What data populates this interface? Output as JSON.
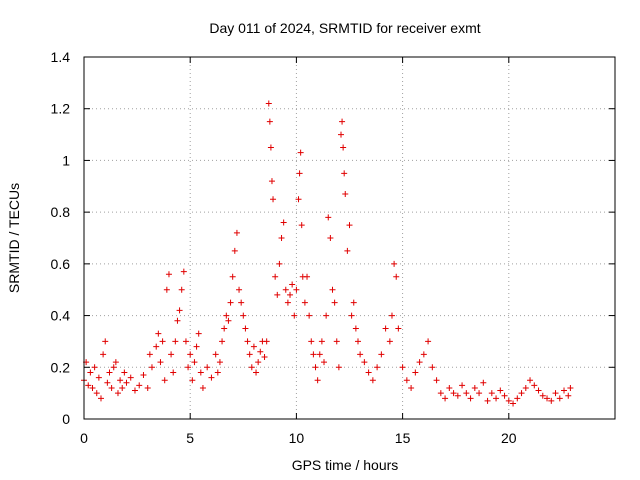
{
  "chart_data": {
    "type": "scatter",
    "title": "Day 011 of 2024, SRMTID for receiver exmt",
    "xlabel": "GPS time / hours",
    "ylabel": "SRMTID / TECUs",
    "xlim": [
      0,
      25
    ],
    "ylim": [
      0,
      1.4
    ],
    "x_ticks": [
      0,
      5,
      10,
      15,
      20
    ],
    "x_tick_labels": [
      "0",
      "5",
      "10",
      "15",
      "20"
    ],
    "y_ticks": [
      0,
      0.2,
      0.4,
      0.6,
      0.8,
      1.0,
      1.2,
      1.4
    ],
    "y_tick_labels": [
      "0",
      "0.2",
      "0.4",
      "0.6",
      "0.8",
      "1",
      "1.2",
      "1.4"
    ],
    "grid": true,
    "marker": "+",
    "marker_color": "#e00000",
    "series": [
      {
        "name": "SRMTID",
        "points": [
          [
            0.0,
            0.15
          ],
          [
            0.1,
            0.22
          ],
          [
            0.2,
            0.13
          ],
          [
            0.3,
            0.18
          ],
          [
            0.4,
            0.12
          ],
          [
            0.5,
            0.2
          ],
          [
            0.6,
            0.1
          ],
          [
            0.7,
            0.16
          ],
          [
            0.8,
            0.08
          ],
          [
            0.9,
            0.25
          ],
          [
            1.0,
            0.3
          ],
          [
            1.1,
            0.14
          ],
          [
            1.2,
            0.18
          ],
          [
            1.3,
            0.12
          ],
          [
            1.4,
            0.2
          ],
          [
            1.5,
            0.22
          ],
          [
            1.6,
            0.1
          ],
          [
            1.7,
            0.15
          ],
          [
            1.8,
            0.12
          ],
          [
            1.9,
            0.18
          ],
          [
            2.0,
            0.14
          ],
          [
            2.2,
            0.16
          ],
          [
            2.4,
            0.11
          ],
          [
            2.6,
            0.13
          ],
          [
            2.8,
            0.17
          ],
          [
            3.0,
            0.12
          ],
          [
            3.1,
            0.25
          ],
          [
            3.2,
            0.2
          ],
          [
            3.4,
            0.28
          ],
          [
            3.5,
            0.33
          ],
          [
            3.6,
            0.22
          ],
          [
            3.7,
            0.3
          ],
          [
            3.8,
            0.15
          ],
          [
            3.9,
            0.5
          ],
          [
            4.0,
            0.56
          ],
          [
            4.1,
            0.25
          ],
          [
            4.2,
            0.18
          ],
          [
            4.3,
            0.3
          ],
          [
            4.4,
            0.38
          ],
          [
            4.5,
            0.42
          ],
          [
            4.6,
            0.5
          ],
          [
            4.7,
            0.57
          ],
          [
            4.8,
            0.3
          ],
          [
            4.9,
            0.2
          ],
          [
            5.0,
            0.25
          ],
          [
            5.1,
            0.15
          ],
          [
            5.2,
            0.22
          ],
          [
            5.3,
            0.28
          ],
          [
            5.4,
            0.33
          ],
          [
            5.5,
            0.18
          ],
          [
            5.6,
            0.12
          ],
          [
            5.8,
            0.2
          ],
          [
            6.0,
            0.16
          ],
          [
            6.2,
            0.25
          ],
          [
            6.3,
            0.18
          ],
          [
            6.4,
            0.22
          ],
          [
            6.5,
            0.3
          ],
          [
            6.6,
            0.35
          ],
          [
            6.7,
            0.4
          ],
          [
            6.8,
            0.38
          ],
          [
            6.9,
            0.45
          ],
          [
            7.0,
            0.55
          ],
          [
            7.1,
            0.65
          ],
          [
            7.2,
            0.72
          ],
          [
            7.3,
            0.5
          ],
          [
            7.4,
            0.45
          ],
          [
            7.5,
            0.4
          ],
          [
            7.6,
            0.35
          ],
          [
            7.7,
            0.3
          ],
          [
            7.8,
            0.25
          ],
          [
            7.9,
            0.2
          ],
          [
            8.0,
            0.28
          ],
          [
            8.1,
            0.18
          ],
          [
            8.2,
            0.22
          ],
          [
            8.3,
            0.26
          ],
          [
            8.4,
            0.3
          ],
          [
            8.5,
            0.24
          ],
          [
            8.6,
            0.3
          ],
          [
            8.7,
            1.22
          ],
          [
            8.75,
            1.15
          ],
          [
            8.8,
            1.05
          ],
          [
            8.85,
            0.92
          ],
          [
            8.9,
            0.85
          ],
          [
            9.0,
            0.55
          ],
          [
            9.1,
            0.48
          ],
          [
            9.2,
            0.6
          ],
          [
            9.3,
            0.7
          ],
          [
            9.4,
            0.76
          ],
          [
            9.5,
            0.5
          ],
          [
            9.6,
            0.45
          ],
          [
            9.7,
            0.48
          ],
          [
            9.8,
            0.52
          ],
          [
            9.9,
            0.4
          ],
          [
            10.0,
            0.5
          ],
          [
            10.1,
            0.85
          ],
          [
            10.15,
            0.95
          ],
          [
            10.2,
            1.03
          ],
          [
            10.25,
            0.75
          ],
          [
            10.3,
            0.55
          ],
          [
            10.4,
            0.45
          ],
          [
            10.5,
            0.55
          ],
          [
            10.6,
            0.4
          ],
          [
            10.7,
            0.3
          ],
          [
            10.8,
            0.25
          ],
          [
            10.9,
            0.2
          ],
          [
            11.0,
            0.15
          ],
          [
            11.1,
            0.25
          ],
          [
            11.2,
            0.3
          ],
          [
            11.3,
            0.22
          ],
          [
            11.4,
            0.4
          ],
          [
            11.5,
            0.78
          ],
          [
            11.6,
            0.7
          ],
          [
            11.7,
            0.5
          ],
          [
            11.8,
            0.45
          ],
          [
            11.9,
            0.3
          ],
          [
            12.0,
            0.2
          ],
          [
            12.1,
            1.1
          ],
          [
            12.15,
            1.15
          ],
          [
            12.2,
            1.05
          ],
          [
            12.25,
            0.95
          ],
          [
            12.3,
            0.87
          ],
          [
            12.4,
            0.65
          ],
          [
            12.5,
            0.75
          ],
          [
            12.6,
            0.4
          ],
          [
            12.7,
            0.45
          ],
          [
            12.8,
            0.35
          ],
          [
            12.9,
            0.3
          ],
          [
            13.0,
            0.25
          ],
          [
            13.2,
            0.22
          ],
          [
            13.4,
            0.18
          ],
          [
            13.6,
            0.15
          ],
          [
            13.8,
            0.2
          ],
          [
            14.0,
            0.25
          ],
          [
            14.2,
            0.35
          ],
          [
            14.4,
            0.3
          ],
          [
            14.5,
            0.4
          ],
          [
            14.6,
            0.6
          ],
          [
            14.7,
            0.55
          ],
          [
            14.8,
            0.35
          ],
          [
            15.0,
            0.2
          ],
          [
            15.2,
            0.15
          ],
          [
            15.4,
            0.12
          ],
          [
            15.6,
            0.18
          ],
          [
            15.8,
            0.22
          ],
          [
            16.0,
            0.25
          ],
          [
            16.2,
            0.3
          ],
          [
            16.4,
            0.2
          ],
          [
            16.6,
            0.15
          ],
          [
            16.8,
            0.1
          ],
          [
            17.0,
            0.08
          ],
          [
            17.2,
            0.12
          ],
          [
            17.4,
            0.1
          ],
          [
            17.6,
            0.09
          ],
          [
            17.8,
            0.13
          ],
          [
            18.0,
            0.1
          ],
          [
            18.2,
            0.08
          ],
          [
            18.4,
            0.12
          ],
          [
            18.6,
            0.1
          ],
          [
            18.8,
            0.14
          ],
          [
            19.0,
            0.07
          ],
          [
            19.2,
            0.1
          ],
          [
            19.4,
            0.08
          ],
          [
            19.6,
            0.11
          ],
          [
            19.8,
            0.09
          ],
          [
            20.0,
            0.07
          ],
          [
            20.2,
            0.06
          ],
          [
            20.4,
            0.08
          ],
          [
            20.6,
            0.1
          ],
          [
            20.8,
            0.12
          ],
          [
            21.0,
            0.15
          ],
          [
            21.2,
            0.13
          ],
          [
            21.4,
            0.11
          ],
          [
            21.6,
            0.09
          ],
          [
            21.8,
            0.08
          ],
          [
            22.0,
            0.07
          ],
          [
            22.2,
            0.1
          ],
          [
            22.4,
            0.08
          ],
          [
            22.6,
            0.11
          ],
          [
            22.8,
            0.09
          ],
          [
            22.9,
            0.12
          ]
        ]
      }
    ]
  }
}
